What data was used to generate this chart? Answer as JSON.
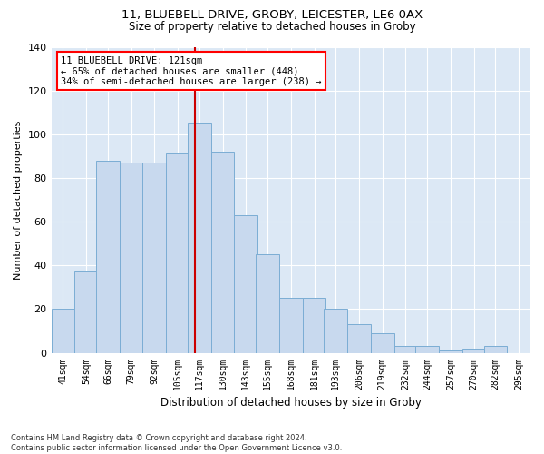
{
  "title1": "11, BLUEBELL DRIVE, GROBY, LEICESTER, LE6 0AX",
  "title2": "Size of property relative to detached houses in Groby",
  "xlabel": "Distribution of detached houses by size in Groby",
  "ylabel": "Number of detached properties",
  "bar_color": "#c8d9ee",
  "bar_edge_color": "#7badd4",
  "background_color": "#dce8f5",
  "grid_color": "#ffffff",
  "vline_color": "#cc0000",
  "vline_x": 121,
  "categories": [
    "41sqm",
    "54sqm",
    "66sqm",
    "79sqm",
    "92sqm",
    "105sqm",
    "117sqm",
    "130sqm",
    "143sqm",
    "155sqm",
    "168sqm",
    "181sqm",
    "193sqm",
    "206sqm",
    "219sqm",
    "232sqm",
    "244sqm",
    "257sqm",
    "270sqm",
    "282sqm",
    "295sqm"
  ],
  "bin_starts": [
    41,
    54,
    66,
    79,
    92,
    105,
    117,
    130,
    143,
    155,
    168,
    181,
    193,
    206,
    219,
    232,
    244,
    257,
    270,
    282,
    295
  ],
  "bin_width": 13,
  "values": [
    20,
    37,
    88,
    87,
    87,
    91,
    105,
    92,
    63,
    45,
    25,
    25,
    20,
    13,
    9,
    3,
    3,
    1,
    2,
    3,
    0
  ],
  "ylim": [
    0,
    140
  ],
  "yticks": [
    0,
    20,
    40,
    60,
    80,
    100,
    120,
    140
  ],
  "annotation_line1": "11 BLUEBELL DRIVE: 121sqm",
  "annotation_line2": "← 65% of detached houses are smaller (448)",
  "annotation_line3": "34% of semi-detached houses are larger (238) →",
  "footnote": "Contains HM Land Registry data © Crown copyright and database right 2024.\nContains public sector information licensed under the Open Government Licence v3.0."
}
